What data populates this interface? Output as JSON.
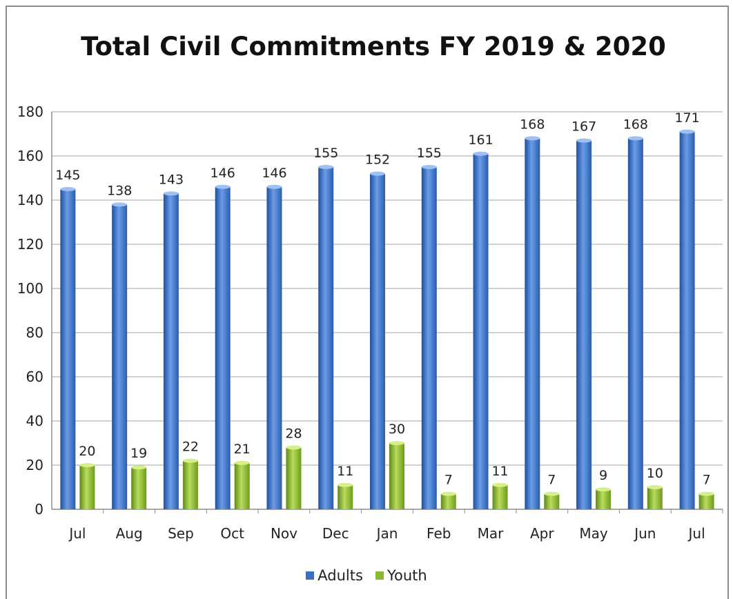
{
  "colors": {
    "adults": "#3b6fc2",
    "youth": "#8cb82f"
  },
  "chart_data": {
    "type": "bar",
    "title": "Total Civil Commitments FY 2019 & 2020",
    "categories": [
      "Jul",
      "Aug",
      "Sep",
      "Oct",
      "Nov",
      "Dec",
      "Jan",
      "Feb",
      "Mar",
      "Apr",
      "May",
      "Jun",
      "Jul"
    ],
    "series": [
      {
        "name": "Adults",
        "values": [
          145,
          138,
          143,
          146,
          146,
          155,
          152,
          155,
          161,
          168,
          167,
          168,
          171
        ]
      },
      {
        "name": "Youth",
        "values": [
          20,
          19,
          22,
          21,
          28,
          11,
          30,
          7,
          11,
          7,
          9,
          10,
          7
        ]
      }
    ],
    "ylim": [
      0,
      180
    ],
    "yticks": [
      0,
      20,
      40,
      60,
      80,
      100,
      120,
      140,
      160,
      180
    ],
    "grid": true,
    "legend": "bottom"
  }
}
